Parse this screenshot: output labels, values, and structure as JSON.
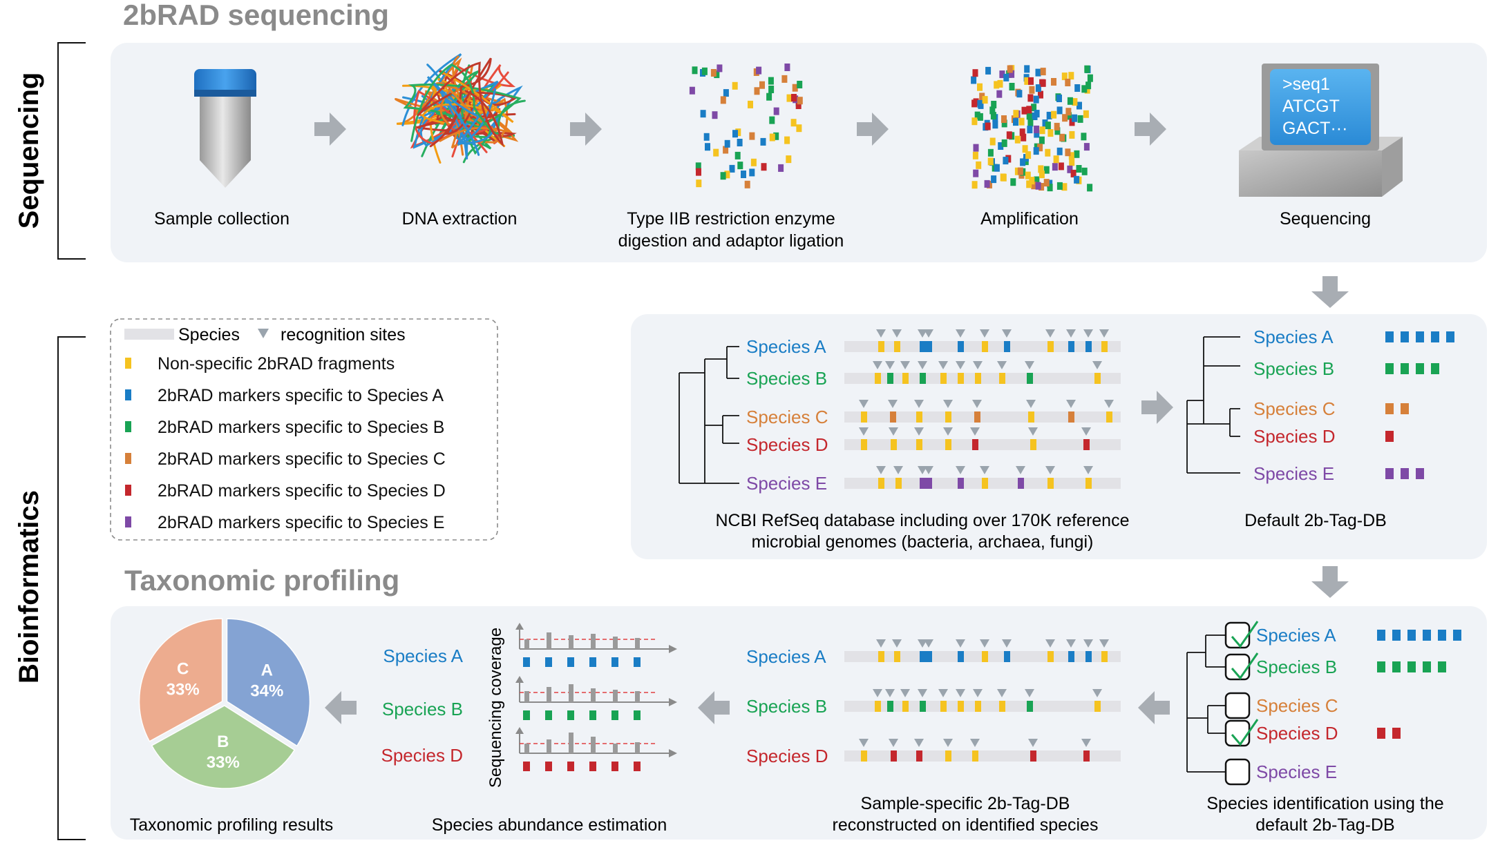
{
  "side_labels": {
    "top": "Sequencing",
    "bottom": "Bioinformatics"
  },
  "titles": {
    "sequencing": "2bRAD sequencing",
    "profiling": "Taxonomic profiling"
  },
  "colors": {
    "A": "#1a7dc5",
    "B": "#19a354",
    "C": "#d6803a",
    "D": "#c4272d",
    "E": "#7e49a6",
    "nonspecific": "#f5c320",
    "site": "#9aa4ad",
    "track": "#e2e2e6",
    "panel": "#f0f3f7",
    "arrow": "#a8adb3",
    "title_gray": "#8a8a8a"
  },
  "steps": [
    {
      "label": "Sample collection"
    },
    {
      "label": "DNA extraction"
    },
    {
      "label": "Type IIB restriction enzyme",
      "label2": "digestion and adaptor ligation"
    },
    {
      "label": "Amplification"
    },
    {
      "label": "Sequencing"
    }
  ],
  "monitor": {
    "lines": [
      ">seq1",
      "ATCGT",
      "GACT···"
    ]
  },
  "legend": {
    "track_label": "Species",
    "site_label": "recognition sites",
    "items": [
      {
        "label": "Non-specific 2bRAD fragments",
        "color_key": "nonspecific"
      },
      {
        "label": "2bRAD markers specific to Species A",
        "color_key": "A"
      },
      {
        "label": "2bRAD markers specific to Species B",
        "color_key": "B"
      },
      {
        "label": "2bRAD markers specific to Species C",
        "color_key": "C"
      },
      {
        "label": "2bRAD markers specific to Species D",
        "color_key": "D"
      },
      {
        "label": "2bRAD markers specific to Species E",
        "color_key": "E"
      }
    ]
  },
  "ref_panel": {
    "species": [
      "Species A",
      "Species B",
      "Species C",
      "Species D",
      "Species E"
    ],
    "caption": "NCBI RefSeq database including over 170K reference",
    "caption2": "microbial genomes (bacteria, archaea, fungi)"
  },
  "db_panel": {
    "species": [
      "Species A",
      "Species B",
      "Species C",
      "Species D",
      "Species E"
    ],
    "marker_counts": [
      5,
      4,
      2,
      1,
      3
    ],
    "caption": "Default 2b-Tag-DB"
  },
  "ident_panel": {
    "species": [
      "Species A",
      "Species B",
      "Species C",
      "Species D",
      "Species E"
    ],
    "identified": [
      true,
      true,
      false,
      true,
      false
    ],
    "marker_counts": [
      6,
      5,
      0,
      2,
      0
    ],
    "caption": "Species identification using the",
    "caption2": "default 2b-Tag-DB"
  },
  "sample_panel": {
    "species": [
      "Species A",
      "Species B",
      "Species D"
    ],
    "caption": "Sample-specific 2b-Tag-DB",
    "caption2": "reconstructed on identified species"
  },
  "abundance": {
    "species": [
      "Species A",
      "Species B",
      "Species D"
    ],
    "ylabel": "Sequencing coverage",
    "caption": "Species abundance estimation"
  },
  "pie": {
    "slices": [
      {
        "label": "A",
        "value": 34,
        "pct": "34%",
        "color": "#7f9fd2"
      },
      {
        "label": "B",
        "value": 33,
        "pct": "33%",
        "color": "#a3cb8f"
      },
      {
        "label": "C",
        "value": 33,
        "pct": "33%",
        "color": "#eda98a"
      }
    ],
    "caption": "Taxonomic profiling results"
  }
}
